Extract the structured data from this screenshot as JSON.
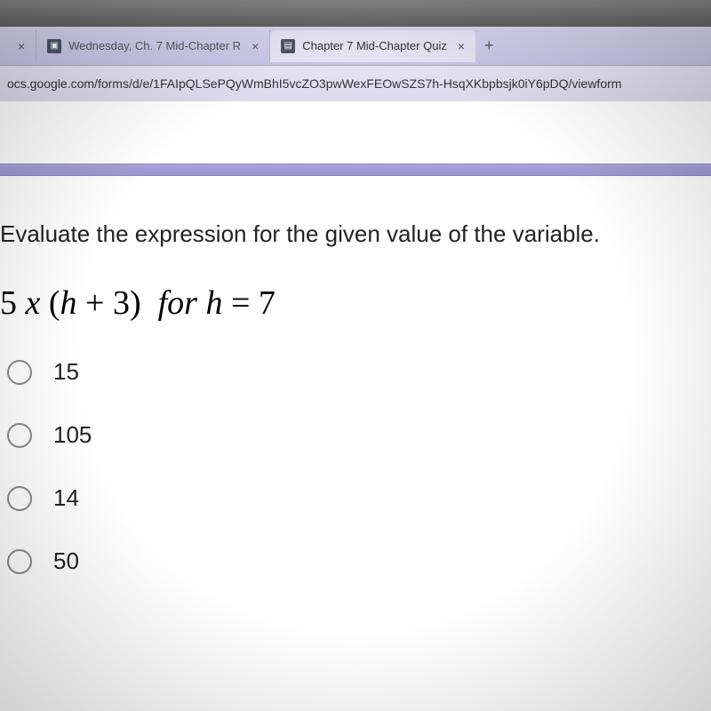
{
  "browser": {
    "tabs": [
      {
        "title": "",
        "active": false,
        "has_close": true
      },
      {
        "title": "Wednesday, Ch. 7 Mid-Chapter R",
        "active": false,
        "has_close": true,
        "favicon": "▣"
      },
      {
        "title": "Chapter 7 Mid-Chapter Quiz",
        "active": true,
        "has_close": true,
        "favicon": "▤"
      }
    ],
    "new_tab_glyph": "+",
    "close_glyph": "×",
    "url": "ocs.google.com/forms/d/e/1FAIpQLSePQyWmBhI5vcZO3pwWexFEOwSZS7h-HsqXKbpbsjk0iY6pDQ/viewform"
  },
  "question": {
    "prompt": "Evaluate the expression for the given value of the variable.",
    "expression_html": "5 x (h + 3)  for h = 7",
    "options": [
      "15",
      "105",
      "14",
      "50"
    ]
  },
  "colors": {
    "tab_strip_bg": "#c9c5e8",
    "active_tab_bg": "#e8e5f5",
    "url_bar_bg": "#dcd8ed",
    "stripe": "#9b95ce",
    "text": "#222222",
    "radio_border": "#888888"
  }
}
